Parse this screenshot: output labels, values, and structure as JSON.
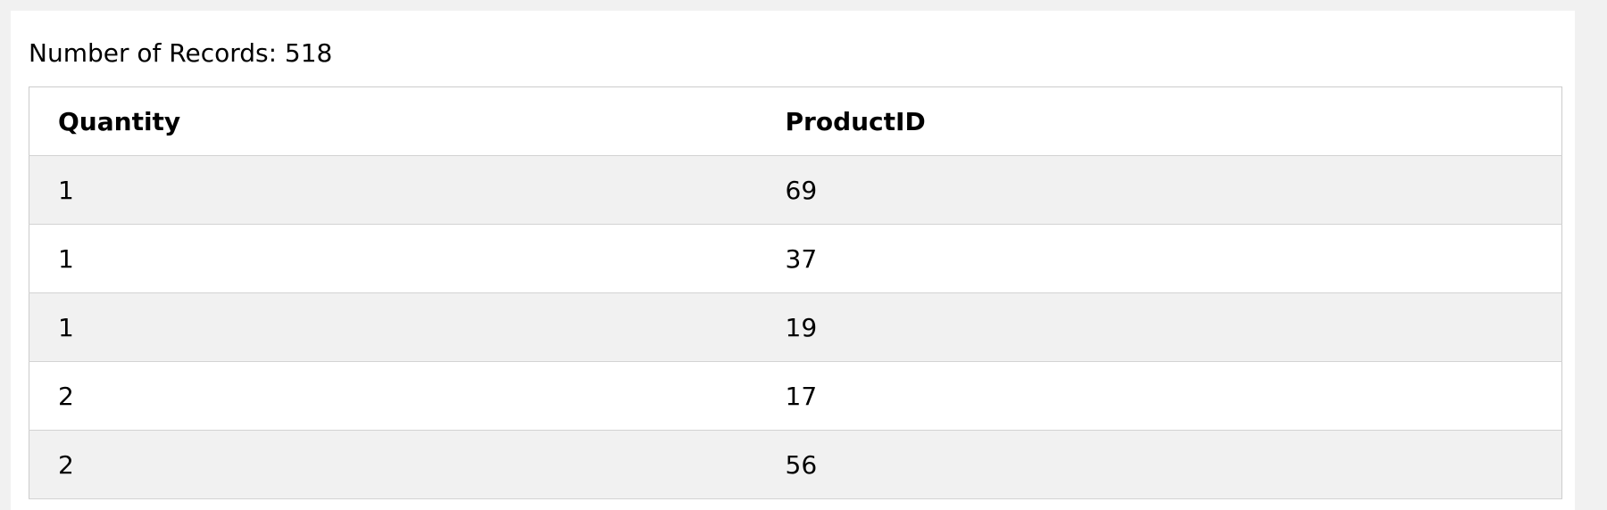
{
  "summary": {
    "records_label": "Number of Records: 518"
  },
  "table": {
    "columns": [
      "Quantity",
      "ProductID"
    ],
    "rows": [
      [
        "1",
        "69"
      ],
      [
        "1",
        "37"
      ],
      [
        "1",
        "19"
      ],
      [
        "2",
        "17"
      ],
      [
        "2",
        "56"
      ]
    ]
  },
  "colors": {
    "page_background": "#f1f1f1",
    "panel_background": "#ffffff",
    "striped_row": "#f1f1f1",
    "border": "#cccccc"
  }
}
